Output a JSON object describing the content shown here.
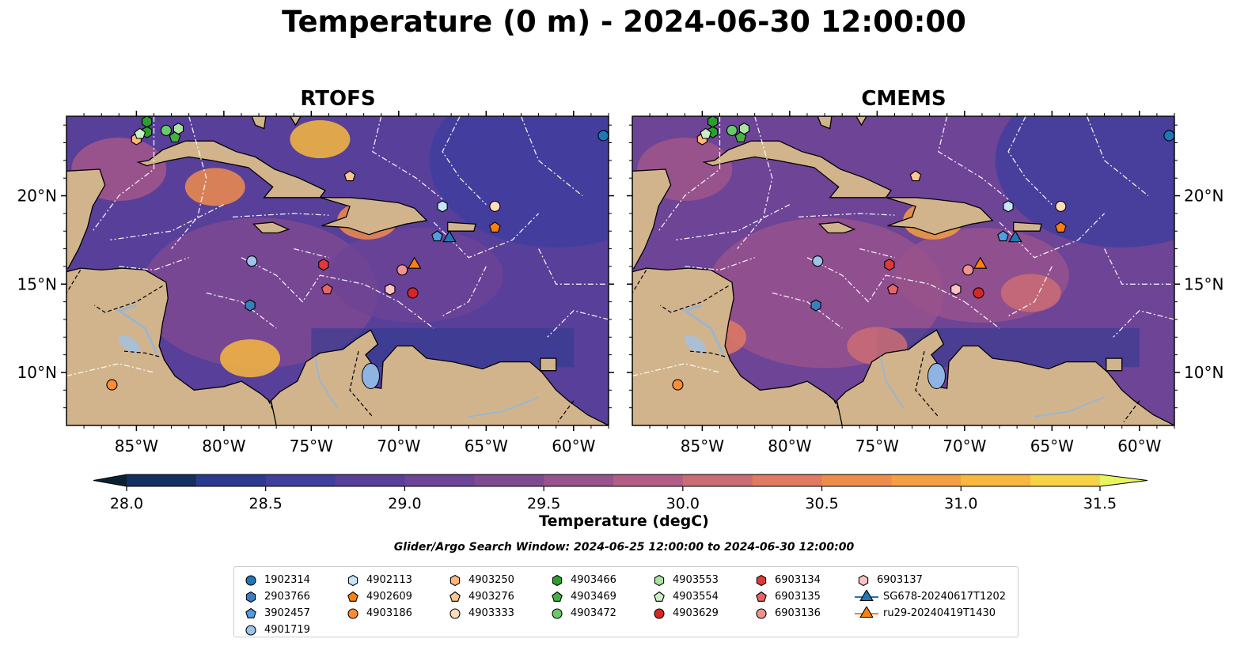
{
  "title": "Temperature (0 m) - 2024-06-30 12:00:00",
  "panels": [
    {
      "title": "RTOFS",
      "warm_spots": [
        {
          "lon": -74.5,
          "lat": 23.2,
          "v": 31.2
        },
        {
          "lon": -78.5,
          "lat": 10.8,
          "v": 31.2
        },
        {
          "lon": -80.5,
          "lat": 20.5,
          "v": 30.7
        },
        {
          "lon": -71.8,
          "lat": 18.6,
          "v": 30.6
        }
      ]
    },
    {
      "title": "CMEMS",
      "warm_spots": [
        {
          "lon": -71.8,
          "lat": 18.6,
          "v": 30.8
        },
        {
          "lon": -84.2,
          "lat": 12.0,
          "v": 30.3
        },
        {
          "lon": -75.0,
          "lat": 11.5,
          "v": 30.1
        },
        {
          "lon": -66.2,
          "lat": 14.5,
          "v": 30.0
        }
      ]
    }
  ],
  "map": {
    "lon_range": [
      -89,
      -58
    ],
    "lat_range": [
      7,
      24.5
    ],
    "lon_ticks": [
      {
        "v": -85,
        "label": "85°W"
      },
      {
        "v": -80,
        "label": "80°W"
      },
      {
        "v": -75,
        "label": "75°W"
      },
      {
        "v": -70,
        "label": "70°W"
      },
      {
        "v": -65,
        "label": "65°W"
      },
      {
        "v": -60,
        "label": "60°W"
      }
    ],
    "lat_ticks": [
      {
        "v": 20,
        "label": "20°N"
      },
      {
        "v": 15,
        "label": "15°N"
      },
      {
        "v": 10,
        "label": "10°N"
      }
    ],
    "land_color": "#d2b48c",
    "eez_color": "#ffffff"
  },
  "colorbar": {
    "label": "Temperature (degC)",
    "vmin": 28.0,
    "vmax": 31.5,
    "step": 0.25,
    "ticks": [
      "28.0",
      "28.5",
      "29.0",
      "29.5",
      "30.0",
      "30.5",
      "31.0",
      "31.5"
    ],
    "colors": [
      "#0b2233",
      "#13305e",
      "#2b3a8f",
      "#3f3f9e",
      "#573f9a",
      "#6d4496",
      "#804a91",
      "#98528c",
      "#b15d86",
      "#cb6c75",
      "#e07a61",
      "#ee8c4b",
      "#f59f40",
      "#f8b83e",
      "#f6d446",
      "#e8f460"
    ]
  },
  "search_window": "Glider/Argo Search Window: 2024-06-25 12:00:00 to 2024-06-30 12:00:00",
  "legend": [
    {
      "label": "1902314",
      "marker": "circle",
      "color": "#1f77b4"
    },
    {
      "label": "2903766",
      "marker": "hexagon",
      "color": "#3a7ec0"
    },
    {
      "label": "3902457",
      "marker": "pentagon",
      "color": "#4e9ee0"
    },
    {
      "label": "4901719",
      "marker": "circle",
      "color": "#9ec2ea"
    },
    {
      "label": "4902113",
      "marker": "hexagon",
      "color": "#c6e6f8"
    },
    {
      "label": "4902609",
      "marker": "pentagon",
      "color": "#ff7f0e"
    },
    {
      "label": "4903186",
      "marker": "circle",
      "color": "#ff8c35"
    },
    {
      "label": "4903250",
      "marker": "hexagon",
      "color": "#ffb77a"
    },
    {
      "label": "4903276",
      "marker": "pentagon",
      "color": "#ffc494"
    },
    {
      "label": "4903333",
      "marker": "circle",
      "color": "#ffdcb8"
    },
    {
      "label": "4903466",
      "marker": "hexagon",
      "color": "#2ca02c"
    },
    {
      "label": "4903469",
      "marker": "pentagon",
      "color": "#45b045"
    },
    {
      "label": "4903472",
      "marker": "circle",
      "color": "#6ac96a"
    },
    {
      "label": "4903553",
      "marker": "hexagon",
      "color": "#a8e3a0"
    },
    {
      "label": "4903554",
      "marker": "pentagon",
      "color": "#c9f0c4"
    },
    {
      "label": "4903629",
      "marker": "circle",
      "color": "#d62728"
    },
    {
      "label": "6903134",
      "marker": "hexagon",
      "color": "#de3a3b"
    },
    {
      "label": "6903135",
      "marker": "pentagon",
      "color": "#e86464"
    },
    {
      "label": "6903136",
      "marker": "circle",
      "color": "#f29292"
    },
    {
      "label": "6903137",
      "marker": "hexagon",
      "color": "#fbc2c2"
    },
    {
      "label": "SG678-20240617T1202",
      "marker": "triangle",
      "color": "#1f77b4"
    },
    {
      "label": "ru29-20240419T1430",
      "marker": "triangle",
      "color": "#ff7f0e"
    }
  ],
  "floats": [
    {
      "id": "1902314",
      "lon": -58.3,
      "lat": 23.4
    },
    {
      "id": "2903766",
      "lon": -78.5,
      "lat": 13.8
    },
    {
      "id": "3902457",
      "lon": -67.8,
      "lat": 17.7
    },
    {
      "id": "4901719",
      "lon": -78.4,
      "lat": 16.3
    },
    {
      "id": "4902113",
      "lon": -67.5,
      "lat": 19.4
    },
    {
      "id": "4902609",
      "lon": -64.5,
      "lat": 18.2
    },
    {
      "id": "4903186",
      "lon": -86.4,
      "lat": 9.3
    },
    {
      "id": "4903250",
      "lon": -85.0,
      "lat": 23.2
    },
    {
      "id": "4903276",
      "lon": -72.8,
      "lat": 21.1
    },
    {
      "id": "4903333",
      "lon": -64.5,
      "lat": 19.4
    },
    {
      "id": "4903466",
      "lon": -84.4,
      "lat": 23.6
    },
    {
      "id": "4903469",
      "lon": -82.8,
      "lat": 23.3
    },
    {
      "id": "4903472",
      "lon": -83.3,
      "lat": 23.7
    },
    {
      "id": "4903553",
      "lon": -82.6,
      "lat": 23.8
    },
    {
      "id": "4903554",
      "lon": -84.8,
      "lat": 23.5
    },
    {
      "id": "4903629",
      "lon": -69.2,
      "lat": 14.5
    },
    {
      "id": "6903134",
      "lon": -74.3,
      "lat": 16.1
    },
    {
      "id": "6903135",
      "lon": -74.1,
      "lat": 14.7
    },
    {
      "id": "6903136",
      "lon": -69.8,
      "lat": 15.8
    },
    {
      "id": "6903137",
      "lon": -70.5,
      "lat": 14.7
    },
    {
      "id": "4903466b",
      "lon": -84.4,
      "lat": 24.2
    }
  ],
  "gliders": [
    {
      "id": "SG678-20240617T1202",
      "lon": -67.1,
      "lat": 17.6,
      "color": "#1f77b4"
    },
    {
      "id": "ru29-20240419T1430",
      "lon": -69.1,
      "lat": 16.1,
      "color": "#ff7f0e"
    }
  ]
}
